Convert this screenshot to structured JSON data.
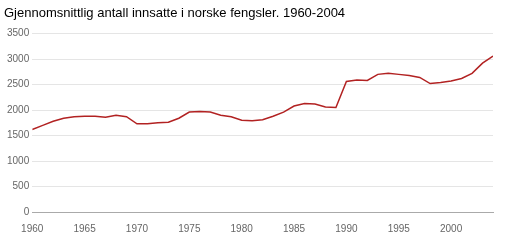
{
  "chart_data": {
    "type": "line",
    "title": "Gjennomsnittlig antall innsatte i norske fengsler. 1960-2004",
    "color": "#b22222",
    "grid": true,
    "xlim": [
      1960,
      2004
    ],
    "ylim": [
      0,
      3500
    ],
    "xticks": [
      1960,
      1965,
      1970,
      1975,
      1980,
      1985,
      1990,
      1995,
      2000
    ],
    "yticks": [
      0,
      500,
      1000,
      1500,
      2000,
      2500,
      3000,
      3500
    ],
    "x": [
      1960,
      1961,
      1962,
      1963,
      1964,
      1965,
      1966,
      1967,
      1968,
      1969,
      1970,
      1971,
      1972,
      1973,
      1974,
      1975,
      1976,
      1977,
      1978,
      1979,
      1980,
      1981,
      1982,
      1983,
      1984,
      1985,
      1986,
      1987,
      1988,
      1989,
      1990,
      1991,
      1992,
      1993,
      1994,
      1995,
      1996,
      1997,
      1998,
      1999,
      2000,
      2001,
      2002,
      2003,
      2004
    ],
    "values": [
      1620,
      1700,
      1780,
      1840,
      1870,
      1880,
      1880,
      1860,
      1900,
      1870,
      1730,
      1730,
      1750,
      1760,
      1840,
      1960,
      1970,
      1960,
      1900,
      1870,
      1800,
      1790,
      1810,
      1880,
      1960,
      2080,
      2130,
      2120,
      2060,
      2050,
      2560,
      2590,
      2580,
      2700,
      2720,
      2700,
      2680,
      2640,
      2520,
      2540,
      2570,
      2620,
      2720,
      2920,
      3060
    ]
  }
}
